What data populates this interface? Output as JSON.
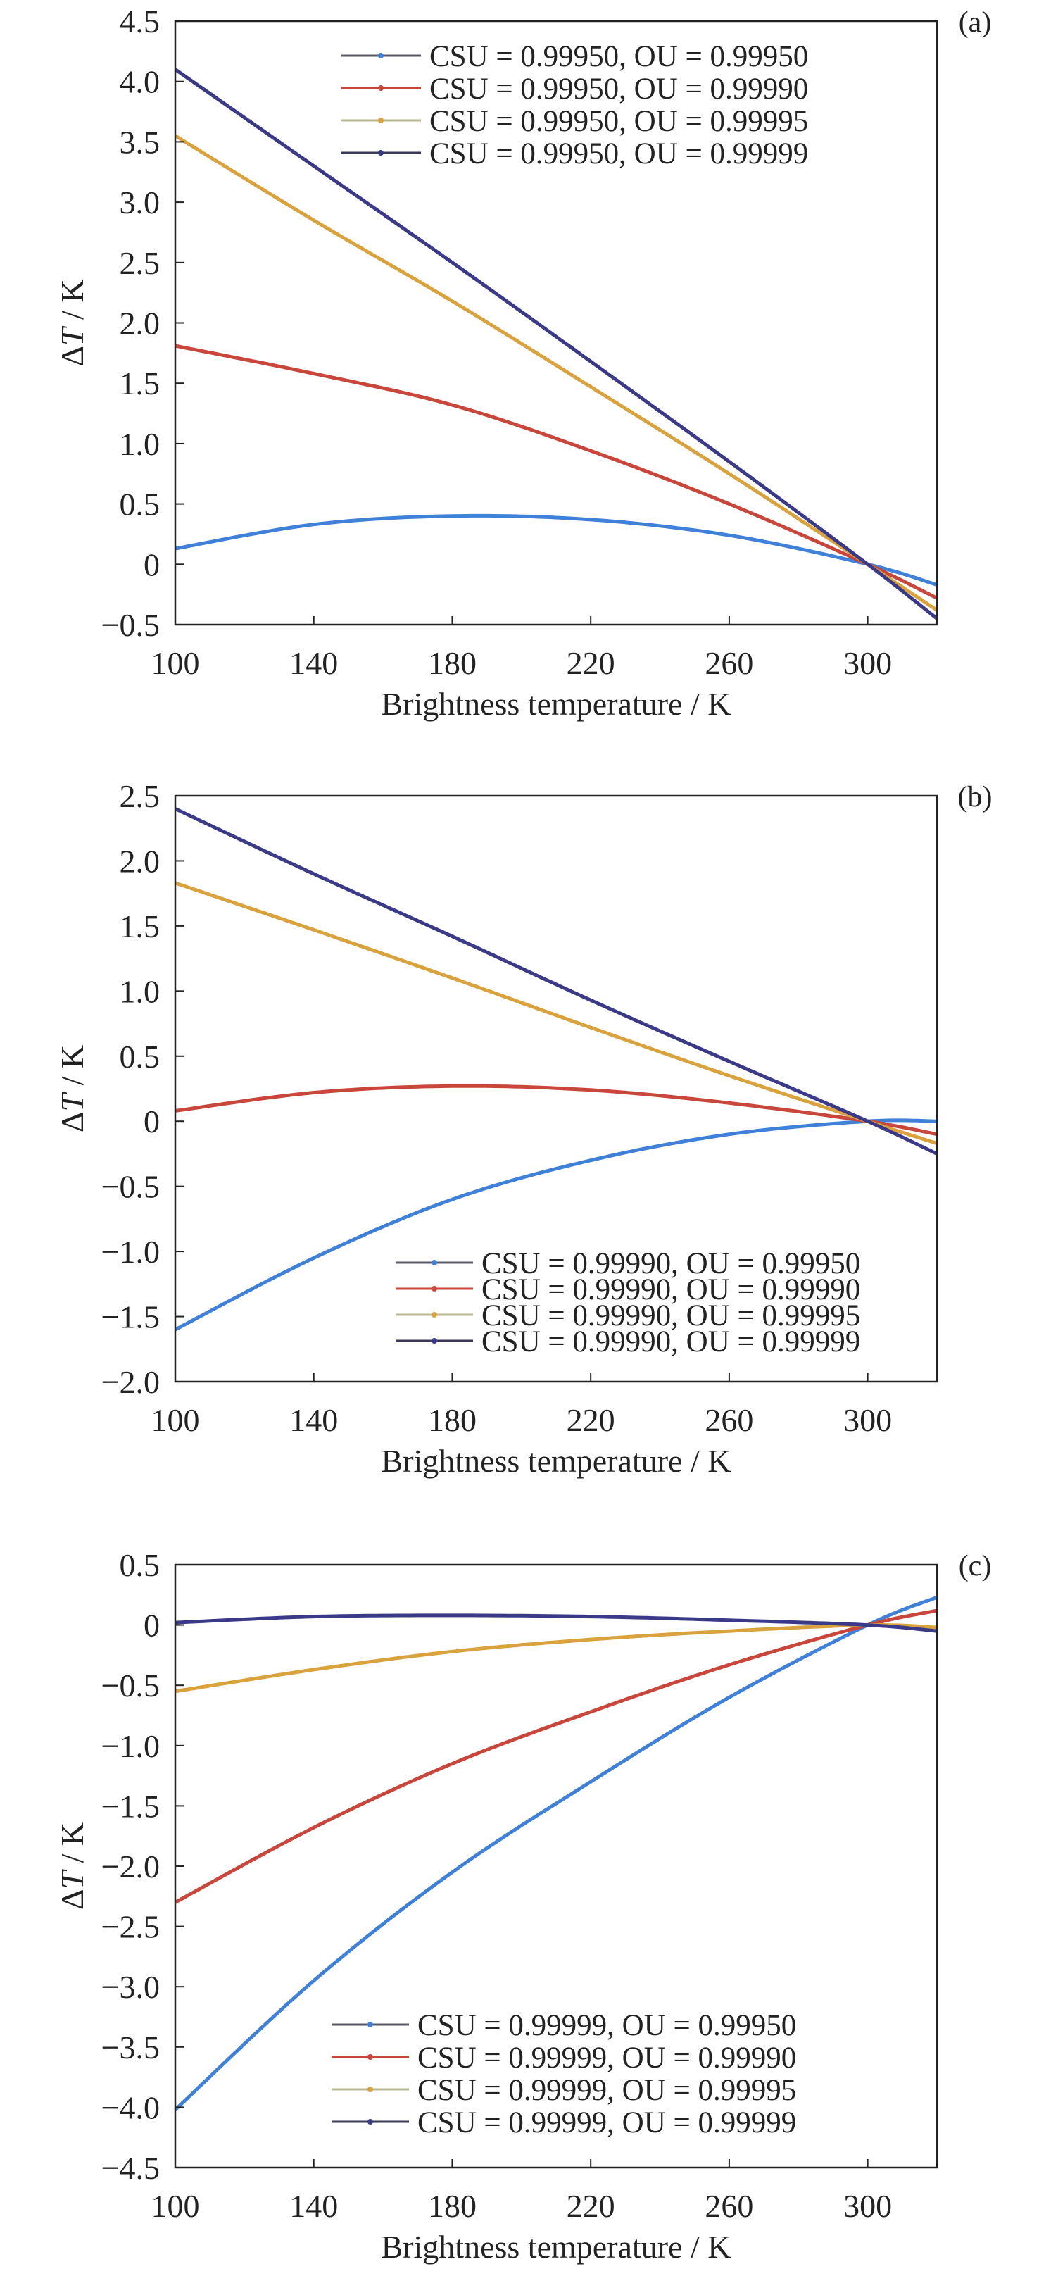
{
  "chart_data": [
    {
      "type": "line",
      "panel_label": "(a)",
      "xlabel": "Brightness temperature / K",
      "ylabel_prefix": "Δ",
      "ylabel_var": "T",
      "ylabel_suffix": " / K",
      "xlim": [
        100,
        320
      ],
      "ylim": [
        -0.5,
        4.5
      ],
      "xticks": [
        100,
        140,
        180,
        220,
        260,
        300
      ],
      "xtick_labels": [
        "100",
        "140",
        "180",
        "220",
        "260",
        "300"
      ],
      "yticks": [
        -0.5,
        0,
        0.5,
        1.0,
        1.5,
        2.0,
        2.5,
        3.0,
        3.5,
        4.0,
        4.5
      ],
      "ytick_labels": [
        "−0.5",
        "0",
        "0.5",
        "1.0",
        "1.5",
        "2.0",
        "2.5",
        "3.0",
        "3.5",
        "4.0",
        "4.5"
      ],
      "grid": false,
      "legend_position": "top-right",
      "x": [
        100,
        140,
        180,
        220,
        260,
        300,
        320
      ],
      "series": [
        {
          "name": "CSU = 0.99950, OU = 0.99950",
          "color": "#3f80d8",
          "values": [
            0.13,
            0.33,
            0.4,
            0.37,
            0.24,
            0,
            -0.17
          ]
        },
        {
          "name": "CSU = 0.99950, OU = 0.99990",
          "color": "#c8463a",
          "values": [
            1.81,
            1.58,
            1.32,
            0.94,
            0.5,
            0,
            -0.28
          ]
        },
        {
          "name": "CSU = 0.99950, OU = 0.99995",
          "color": "#d9a23c",
          "values": [
            3.55,
            2.85,
            2.18,
            1.47,
            0.75,
            0,
            -0.38
          ]
        },
        {
          "name": "CSU = 0.99950, OU = 0.99999",
          "color": "#3b3a88",
          "values": [
            4.1,
            3.3,
            2.5,
            1.68,
            0.85,
            0,
            -0.45
          ]
        }
      ]
    },
    {
      "type": "line",
      "panel_label": "(b)",
      "xlabel": "Brightness temperature / K",
      "ylabel_prefix": "Δ",
      "ylabel_var": "T",
      "ylabel_suffix": " / K",
      "xlim": [
        100,
        320
      ],
      "ylim": [
        -2.0,
        2.5
      ],
      "xticks": [
        100,
        140,
        180,
        220,
        260,
        300
      ],
      "xtick_labels": [
        "100",
        "140",
        "180",
        "220",
        "260",
        "300"
      ],
      "yticks": [
        -2.0,
        -1.5,
        -1.0,
        -0.5,
        0,
        0.5,
        1.0,
        1.5,
        2.0,
        2.5
      ],
      "ytick_labels": [
        "−2.0",
        "−1.5",
        "−1.0",
        "−0.5",
        "0",
        "0.5",
        "1.0",
        "1.5",
        "2.0",
        "2.5"
      ],
      "grid": false,
      "legend_position": "bottom-right",
      "x": [
        100,
        140,
        180,
        220,
        260,
        300,
        320
      ],
      "series": [
        {
          "name": "CSU = 0.99990, OU = 0.99950",
          "color": "#3f80d8",
          "values": [
            -1.6,
            -1.05,
            -0.6,
            -0.3,
            -0.1,
            0,
            0.0
          ]
        },
        {
          "name": "CSU = 0.99990, OU = 0.99990",
          "color": "#c8463a",
          "values": [
            0.08,
            0.22,
            0.27,
            0.24,
            0.14,
            0,
            -0.1
          ]
        },
        {
          "name": "CSU = 0.99990, OU = 0.99995",
          "color": "#d9a23c",
          "values": [
            1.83,
            1.47,
            1.1,
            0.72,
            0.35,
            0,
            -0.17
          ]
        },
        {
          "name": "CSU = 0.99990, OU = 0.99999",
          "color": "#3b3a88",
          "values": [
            2.4,
            1.9,
            1.42,
            0.93,
            0.46,
            0,
            -0.25
          ]
        }
      ]
    },
    {
      "type": "line",
      "panel_label": "(c)",
      "xlabel": "Brightness temperature / K",
      "ylabel_prefix": "Δ",
      "ylabel_var": "T",
      "ylabel_suffix": " / K",
      "xlim": [
        100,
        320
      ],
      "ylim": [
        -4.5,
        0.5
      ],
      "xticks": [
        100,
        140,
        180,
        220,
        260,
        300
      ],
      "xtick_labels": [
        "100",
        "140",
        "180",
        "220",
        "260",
        "300"
      ],
      "yticks": [
        -4.5,
        -4.0,
        -3.5,
        -3.0,
        -2.5,
        -2.0,
        -1.5,
        -1.0,
        -0.5,
        0,
        0.5
      ],
      "ytick_labels": [
        "−4.5",
        "−4.0",
        "−3.5",
        "−3.0",
        "−2.5",
        "−2.0",
        "−1.5",
        "−1.0",
        "−0.5",
        "0",
        "0.5"
      ],
      "grid": false,
      "legend_position": "bottom-right",
      "x": [
        100,
        140,
        180,
        220,
        260,
        300,
        320
      ],
      "series": [
        {
          "name": "CSU = 0.99999, OU = 0.99950",
          "color": "#3f80d8",
          "values": [
            -4.02,
            -2.95,
            -2.05,
            -1.3,
            -0.6,
            0,
            0.23
          ]
        },
        {
          "name": "CSU = 0.99999, OU = 0.99990",
          "color": "#c8463a",
          "values": [
            -2.3,
            -1.68,
            -1.15,
            -0.72,
            -0.33,
            0,
            0.12
          ]
        },
        {
          "name": "CSU = 0.99999, OU = 0.99995",
          "color": "#d9a23c",
          "values": [
            -0.55,
            -0.37,
            -0.22,
            -0.12,
            -0.05,
            0,
            -0.02
          ]
        },
        {
          "name": "CSU = 0.99999, OU = 0.99999",
          "color": "#3b3a88",
          "values": [
            0.02,
            0.07,
            0.08,
            0.07,
            0.04,
            0,
            -0.05
          ]
        }
      ]
    }
  ]
}
